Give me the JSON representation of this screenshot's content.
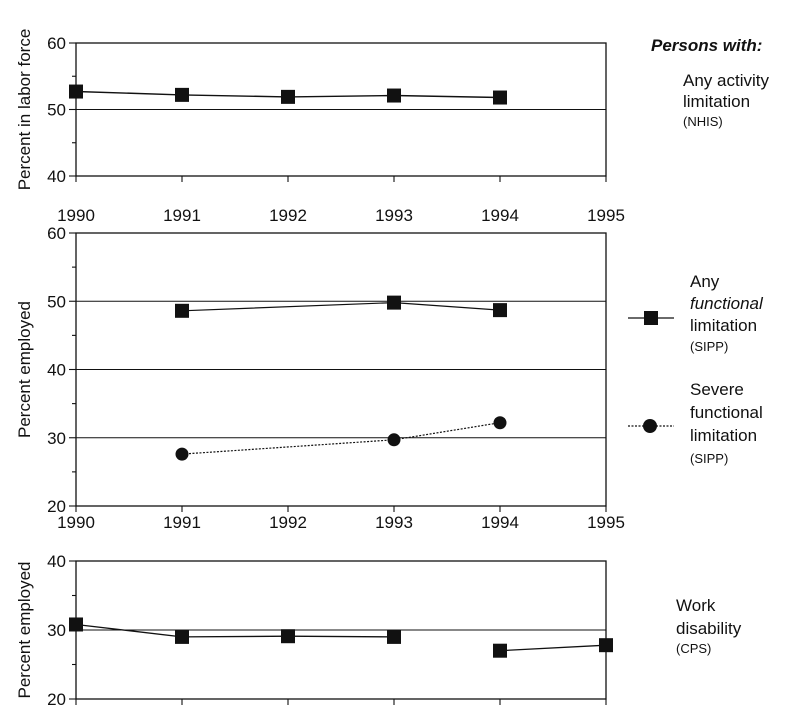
{
  "chart_data": [
    {
      "type": "line",
      "ylabel": "Percent in labor force",
      "xlim": [
        1990,
        1995
      ],
      "ylim": [
        40,
        60
      ],
      "x_ticks": [
        1990,
        1991,
        1992,
        1993,
        1994,
        1995
      ],
      "y_ticks": [
        40,
        50,
        60
      ],
      "gridlines_y": [
        50
      ],
      "series": [
        {
          "legend_key": "any_activity",
          "marker": "square",
          "x": [
            1990,
            1991,
            1992,
            1993,
            1994
          ],
          "values": [
            52.7,
            52.2,
            51.9,
            52.1,
            51.8
          ]
        }
      ]
    },
    {
      "type": "line",
      "ylabel": "Percent employed",
      "xlim": [
        1990,
        1995
      ],
      "ylim": [
        20,
        60
      ],
      "x_ticks": [
        1990,
        1991,
        1992,
        1993,
        1994,
        1995
      ],
      "y_ticks": [
        20,
        30,
        40,
        50,
        60
      ],
      "gridlines_y": [
        30,
        40,
        50
      ],
      "series": [
        {
          "legend_key": "any_functional",
          "marker": "square",
          "x": [
            1991,
            1993,
            1994
          ],
          "values": [
            48.6,
            49.8,
            48.7
          ]
        },
        {
          "legend_key": "severe_functional",
          "marker": "circle",
          "x": [
            1991,
            1993,
            1994
          ],
          "values": [
            27.6,
            29.7,
            32.2
          ]
        }
      ]
    },
    {
      "type": "line",
      "ylabel": "Percent employed",
      "xlim": [
        1990,
        1995
      ],
      "ylim": [
        20,
        40
      ],
      "x_ticks": [],
      "y_ticks": [
        20,
        30,
        40
      ],
      "gridlines_y": [
        30
      ],
      "series": [
        {
          "legend_key": "work_disability_a",
          "marker": "square",
          "x": [
            1990,
            1991,
            1992,
            1993
          ],
          "values": [
            30.8,
            29.0,
            29.1,
            29.0
          ]
        },
        {
          "legend_key": "work_disability_b",
          "marker": "square",
          "x": [
            1994,
            1995
          ],
          "values": [
            27.0,
            27.8
          ]
        }
      ]
    }
  ],
  "legend": {
    "heading": "Persons with:",
    "entries": {
      "any_activity": {
        "lines": [
          "Any activity",
          "limitation"
        ],
        "source": "(NHIS)"
      },
      "any_functional": {
        "lines": [
          "Any",
          "functional",
          "limitation"
        ],
        "source": "(SIPP)"
      },
      "severe_functional": {
        "lines": [
          "Severe",
          "functional",
          "limitation"
        ],
        "source": "(SIPP)"
      },
      "work_disability": {
        "lines": [
          "Work",
          "disability"
        ],
        "source": "(CPS)"
      }
    }
  }
}
